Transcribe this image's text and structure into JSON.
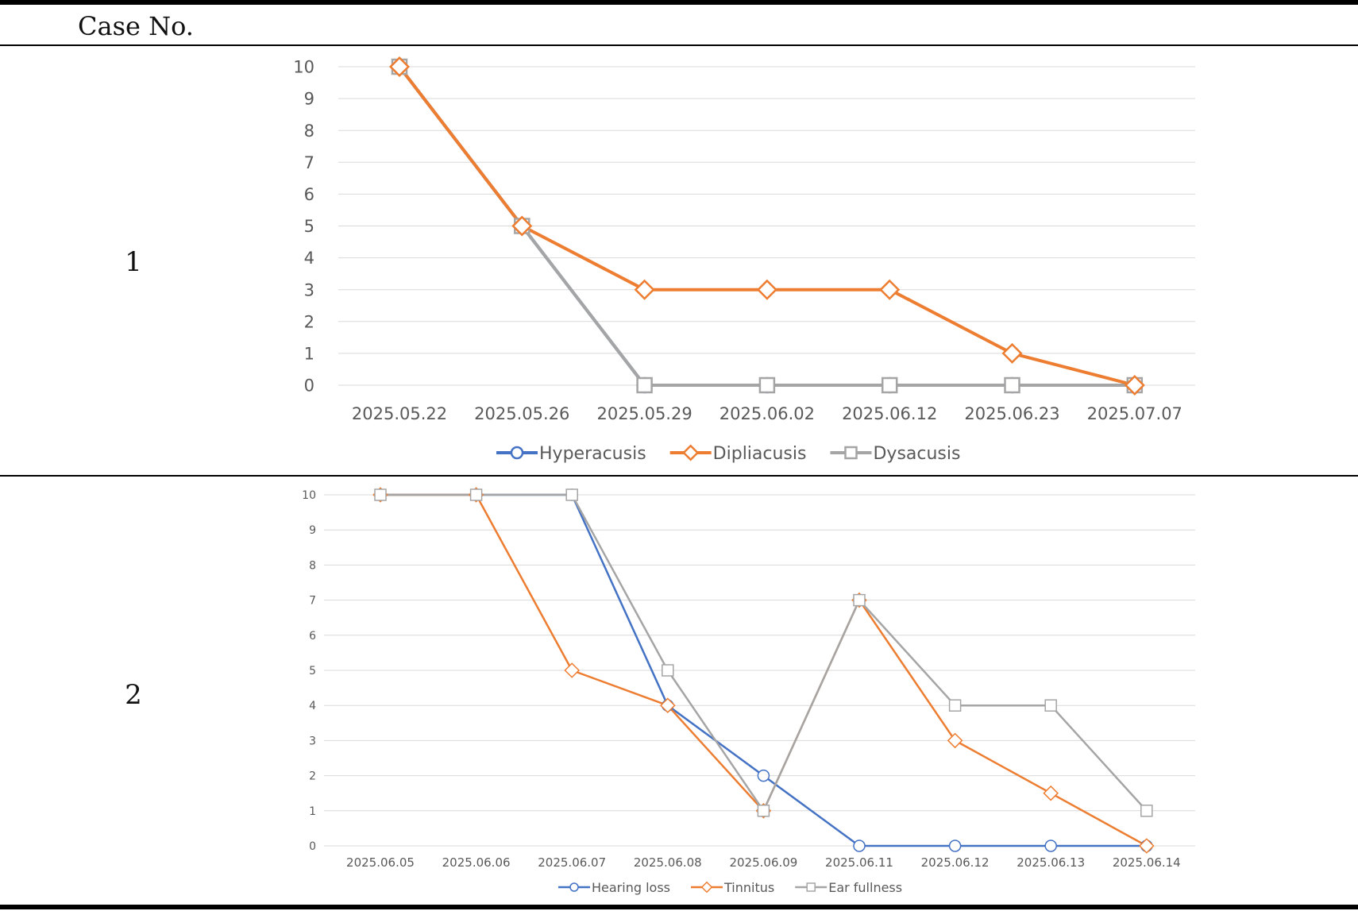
{
  "table": {
    "header": "Case  No.",
    "cases": [
      "1",
      "2"
    ]
  },
  "chart_data": [
    {
      "type": "line",
      "categories": [
        "2025.05.22",
        "2025.05.26",
        "2025.05.29",
        "2025.06.02",
        "2025.06.12",
        "2025.06.23",
        "2025.07.07"
      ],
      "ylim": [
        0,
        10
      ],
      "yticks": [
        0,
        1,
        2,
        3,
        4,
        5,
        6,
        7,
        8,
        9,
        10
      ],
      "grid": true,
      "legend_position": "bottom",
      "series": [
        {
          "name": "Hyperacusis",
          "values": [
            10,
            5,
            0,
            0,
            0,
            0,
            0
          ],
          "color": "#4472C4",
          "marker": "circle"
        },
        {
          "name": "Dipliacusis",
          "values": [
            10,
            5,
            3,
            3,
            3,
            1,
            0
          ],
          "color": "#ED7D31",
          "marker": "diamond"
        },
        {
          "name": "Dysacusis",
          "values": [
            10,
            5,
            0,
            0,
            0,
            0,
            0
          ],
          "color": "#A5A5A5",
          "marker": "square"
        }
      ]
    },
    {
      "type": "line",
      "categories": [
        "2025.06.05",
        "2025.06.06",
        "2025.06.07",
        "2025.06.08",
        "2025.06.09",
        "2025.06.11",
        "2025.06.12",
        "2025.06.13",
        "2025.06.14"
      ],
      "ylim": [
        0,
        10
      ],
      "yticks": [
        0,
        1,
        2,
        3,
        4,
        5,
        6,
        7,
        8,
        9,
        10
      ],
      "grid": true,
      "legend_position": "bottom",
      "series": [
        {
          "name": "Hearing loss",
          "values": [
            10,
            10,
            10,
            4,
            2,
            0,
            0,
            0,
            0
          ],
          "color": "#4472C4",
          "marker": "circle"
        },
        {
          "name": "Tinnitus",
          "values": [
            10,
            10,
            5,
            4,
            1,
            7,
            3,
            1.5,
            0
          ],
          "color": "#ED7D31",
          "marker": "diamond"
        },
        {
          "name": "Ear fullness",
          "values": [
            10,
            10,
            10,
            5,
            1,
            7,
            4,
            4,
            1
          ],
          "color": "#A5A5A5",
          "marker": "square"
        }
      ]
    }
  ]
}
